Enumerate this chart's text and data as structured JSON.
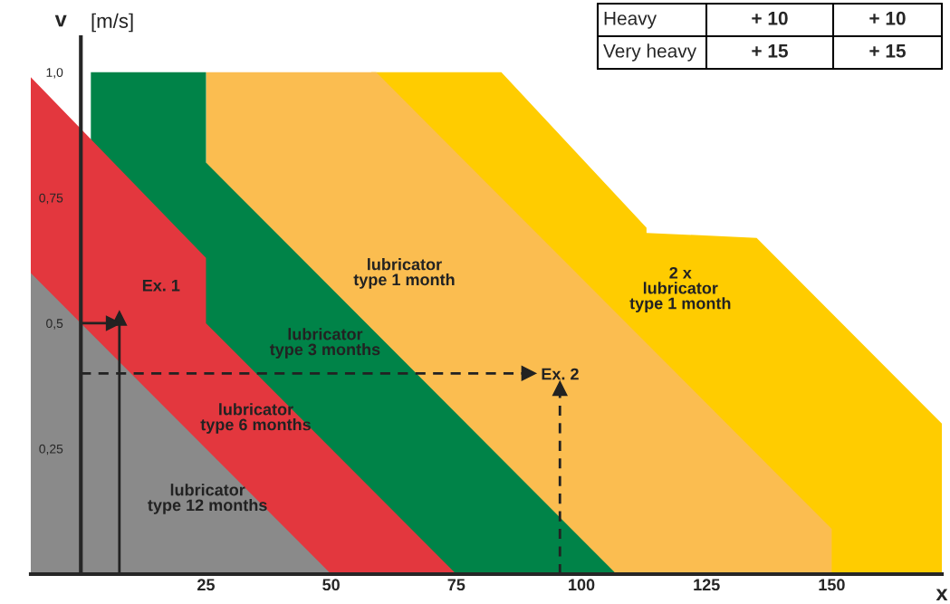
{
  "chart_data": {
    "type": "area",
    "ylabel": "v",
    "xlabel": "x",
    "xlim": [
      -10,
      172
    ],
    "ylim": [
      0,
      1.07
    ],
    "xticks": [
      25,
      50,
      75,
      100,
      125,
      150
    ],
    "yticks": [
      {
        "value": 0.25,
        "label": "0,25"
      },
      {
        "value": 0.5,
        "label": "0,5"
      },
      {
        "value": 0.75,
        "label": "0,75"
      },
      {
        "value": 1.0,
        "label": "1,0"
      }
    ],
    "grid": false,
    "series": [
      {
        "name": "2 x\nlubricator\ntype 1 month",
        "color": "#ffcc00",
        "line_style": "dashed",
        "x": [
          58,
          84,
          113,
          113,
          135,
          172
        ],
        "values": [
          1.0,
          1.0,
          0.69,
          0.68,
          0.67,
          0.3
        ]
      },
      {
        "name": "lubricator\ntype 1 month",
        "color": "#fbbd50",
        "x": [
          25,
          25,
          59,
          150,
          150
        ],
        "values": [
          0,
          1.0,
          1.0,
          0.09,
          0
        ]
      },
      {
        "name": "lubricator\ntype 3 months",
        "color": "#008348",
        "x": [
          2,
          25,
          25,
          107
        ],
        "values": [
          1.0,
          1.0,
          0.82,
          0
        ]
      },
      {
        "name": "lubricator\ntype 6 months",
        "color": "#e3373e",
        "x": [
          -10,
          25,
          25,
          75
        ],
        "values": [
          0.99,
          0.63,
          0.5,
          0
        ]
      },
      {
        "name": "lubricator\ntype 12 months",
        "color": "#8a8a8a",
        "x": [
          -10,
          0,
          50
        ],
        "values": [
          0.6,
          0.5,
          0
        ]
      },
      {
        "type": "line",
        "name": "Ex. 1",
        "color": "#222222",
        "line_style": "solid",
        "x": [
          7.7,
          7.7
        ],
        "values": [
          0,
          0.51
        ]
      },
      {
        "type": "line",
        "color": "#222222",
        "line_style": "solid",
        "x": [
          0,
          6.5
        ],
        "values": [
          0.5,
          0.5
        ]
      },
      {
        "type": "line",
        "name": "Ex. 2",
        "color": "#222222",
        "line_style": "dashed",
        "x": [
          0,
          89.5
        ],
        "values": [
          0.4,
          0.4
        ]
      },
      {
        "type": "line",
        "color": "#222222",
        "line_style": "dashed",
        "x": [
          95.7,
          95.7
        ],
        "values": [
          0,
          0.37
        ]
      }
    ],
    "annotations": [
      "[m/s]",
      "Heavy",
      "+ 10",
      "+ 10",
      "Very heavy",
      "+ 15",
      "+ 15"
    ]
  }
}
